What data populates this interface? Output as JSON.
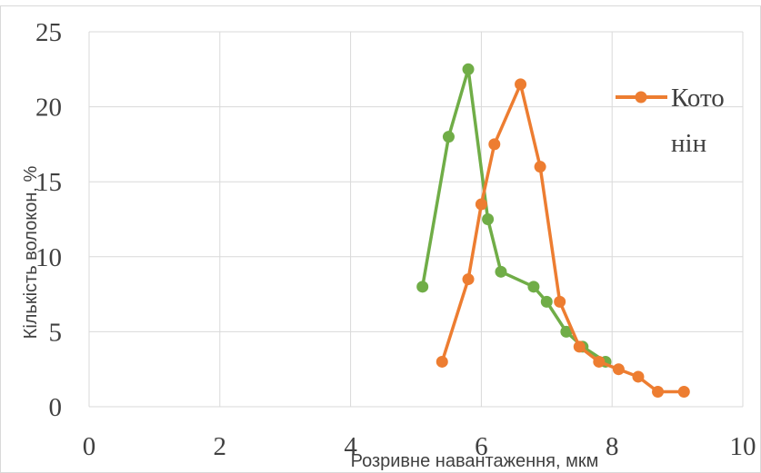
{
  "chart_data": {
    "type": "line",
    "xlabel": "Розривне навантаження,  мкм",
    "ylabel": "Кількість волокон, %",
    "xlim": [
      0,
      10
    ],
    "ylim": [
      0,
      25
    ],
    "x_ticks": [
      "0",
      "2",
      "4",
      "6",
      "8",
      "10"
    ],
    "y_ticks": [
      "0",
      "5",
      "10",
      "15",
      "20",
      "25"
    ],
    "grid": "vertical and horizontal major gridlines",
    "legend_position": "right",
    "series": [
      {
        "name": "",
        "color": "#70ad47",
        "x": [
          5.1,
          5.5,
          5.8,
          6.1,
          6.3,
          6.8,
          7.0,
          7.3,
          7.55,
          7.9
        ],
        "y": [
          8,
          18,
          22.5,
          12.5,
          9,
          8,
          7,
          5,
          4,
          3
        ]
      },
      {
        "name": "Котонін",
        "color": "#ed7d31",
        "x": [
          5.4,
          5.8,
          6.0,
          6.2,
          6.6,
          6.9,
          7.2,
          7.5,
          7.8,
          8.1,
          8.4,
          8.7,
          9.1
        ],
        "y": [
          3,
          8.5,
          13.5,
          17.5,
          21.5,
          16,
          7,
          4,
          3,
          2.5,
          2,
          1,
          1
        ]
      }
    ],
    "legend": {
      "line1": "Кото",
      "line2": "нін"
    }
  }
}
